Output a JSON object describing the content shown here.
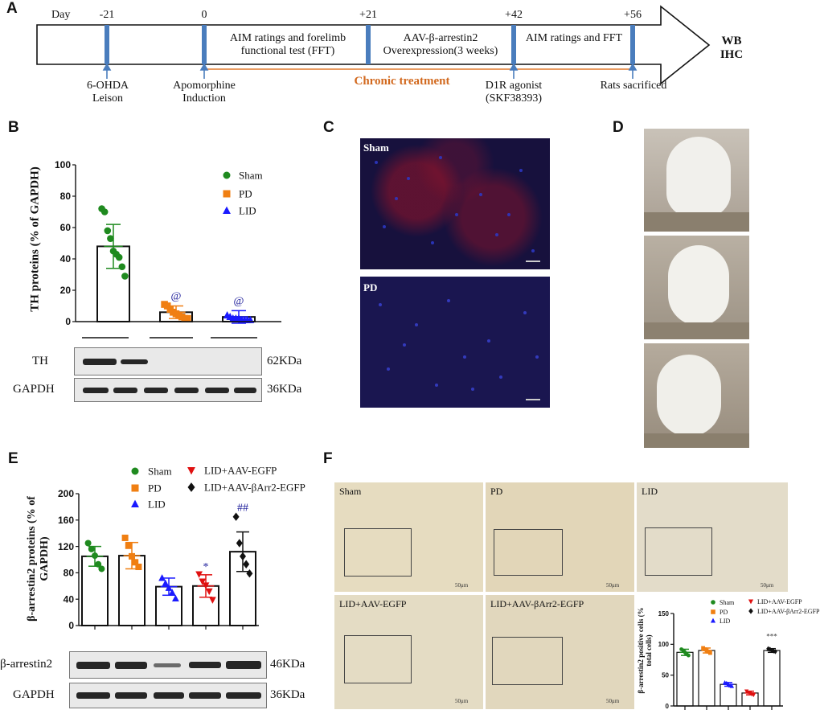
{
  "panels": {
    "a": "A",
    "b": "B",
    "c": "C",
    "d": "D",
    "e": "E",
    "f": "F"
  },
  "timeline": {
    "day_label": "Day",
    "days": [
      "-21",
      "0",
      "+21",
      "+42",
      "+56"
    ],
    "box_texts": [
      "AIM ratings and forelimb functional test (FFT)",
      "AAV-β-arrestin2 Overexpression(3 weeks)",
      "AIM ratings and FFT"
    ],
    "events": [
      "6-OHDA Leison",
      "Apomorphine Induction",
      "D1R agonist (SKF38393)",
      "Rats sacrificed"
    ],
    "chronic": "Chronic treatment",
    "end_labels": [
      "WB",
      "IHC"
    ],
    "colors": {
      "marker": "#4a7dbd",
      "chronic": "#d2691e"
    }
  },
  "panel_b": {
    "blot_rows": [
      {
        "label": "TH",
        "size": "62KDa"
      },
      {
        "label": "GAPDH",
        "size": "36KDa"
      }
    ],
    "significance": [
      "@",
      "@"
    ]
  },
  "panel_c": {
    "images": [
      "Sham",
      "PD"
    ]
  },
  "panel_e": {
    "blot_rows": [
      {
        "label": "β-arrestin2",
        "size": "46KDa"
      },
      {
        "label": "GAPDH",
        "size": "36KDa"
      }
    ],
    "significance": [
      "*",
      "##"
    ]
  },
  "panel_f": {
    "images": [
      "Sham",
      "PD",
      "LID",
      "LID+AAV-EGFP",
      "LID+AAV-βArr2-EGFP"
    ],
    "scale": "50μm",
    "significance": [
      "***"
    ]
  },
  "chart_data": [
    {
      "type": "bar",
      "panel": "B",
      "ylabel": "TH proteins (% of GAPDH)",
      "ylim": [
        0,
        100
      ],
      "yticks": [
        0,
        20,
        40,
        60,
        80,
        100
      ],
      "categories": [
        "Sham",
        "PD",
        "LID"
      ],
      "legend": [
        {
          "name": "Sham",
          "marker": "circle",
          "color": "#1f8a1f"
        },
        {
          "name": "PD",
          "marker": "square",
          "color": "#f07f12"
        },
        {
          "name": "LID",
          "marker": "triangle",
          "color": "#1a1aff"
        }
      ],
      "values": [
        48,
        6,
        3
      ],
      "errors": [
        14,
        4,
        4
      ],
      "points": [
        [
          72,
          70,
          58,
          53,
          45,
          43,
          41,
          35,
          29
        ],
        [
          11,
          10,
          8,
          6,
          5,
          4,
          3,
          2,
          2
        ],
        [
          4,
          3,
          2,
          2,
          2,
          1,
          1,
          1,
          1
        ]
      ]
    },
    {
      "type": "bar",
      "panel": "E",
      "ylabel": "β-arrestin2 proteins (% of GAPDH)",
      "ylim": [
        0,
        200
      ],
      "yticks": [
        0,
        40,
        80,
        120,
        160,
        200
      ],
      "categories": [
        "Sham",
        "PD",
        "LID",
        "LID+AAV-EGFP",
        "LID+AAV-βArr2-EGFP"
      ],
      "legend": [
        {
          "name": "Sham",
          "marker": "circle",
          "color": "#1f8a1f"
        },
        {
          "name": "PD",
          "marker": "square",
          "color": "#f07f12"
        },
        {
          "name": "LID",
          "marker": "triangle",
          "color": "#1a1aff"
        },
        {
          "name": "LID+AAV-EGFP",
          "marker": "triangle-down",
          "color": "#e01010"
        },
        {
          "name": "LID+AAV-βArr2-EGFP",
          "marker": "diamond",
          "color": "#111111"
        }
      ],
      "values": [
        105,
        106,
        59,
        60,
        112
      ],
      "errors": [
        15,
        20,
        13,
        17,
        30
      ],
      "points": [
        [
          125,
          116,
          106,
          93,
          86
        ],
        [
          133,
          121,
          105,
          96,
          89
        ],
        [
          72,
          64,
          57,
          50,
          41
        ],
        [
          78,
          67,
          61,
          52,
          39
        ],
        [
          165,
          125,
          105,
          93,
          79
        ]
      ]
    },
    {
      "type": "bar",
      "panel": "F-inset",
      "ylabel": "β-arrestin2 positive cells (% total cells)",
      "ylim": [
        0,
        150
      ],
      "yticks": [
        0,
        50,
        100,
        150
      ],
      "categories": [
        "Sham",
        "PD",
        "LID",
        "LID+AAV-EGFP",
        "LID+AAV-βArr2-EGFP"
      ],
      "legend": [
        {
          "name": "Sham",
          "marker": "circle",
          "color": "#1f8a1f"
        },
        {
          "name": "PD",
          "marker": "square",
          "color": "#f07f12"
        },
        {
          "name": "LID",
          "marker": "triangle",
          "color": "#1a1aff"
        },
        {
          "name": "LID+AAV-EGFP",
          "marker": "triangle-down",
          "color": "#e01010"
        },
        {
          "name": "LID+AAV-βArr2-EGFP",
          "marker": "diamond",
          "color": "#111111"
        }
      ],
      "values": [
        87,
        90,
        35,
        21,
        90
      ],
      "errors": [
        5,
        4,
        3,
        3,
        3
      ],
      "points": [
        [
          92,
          90,
          87,
          84,
          82
        ],
        [
          94,
          92,
          90,
          88,
          86
        ],
        [
          38,
          37,
          35,
          33,
          32
        ],
        [
          24,
          22,
          21,
          19,
          18
        ],
        [
          93,
          92,
          90,
          89,
          88
        ]
      ]
    }
  ]
}
